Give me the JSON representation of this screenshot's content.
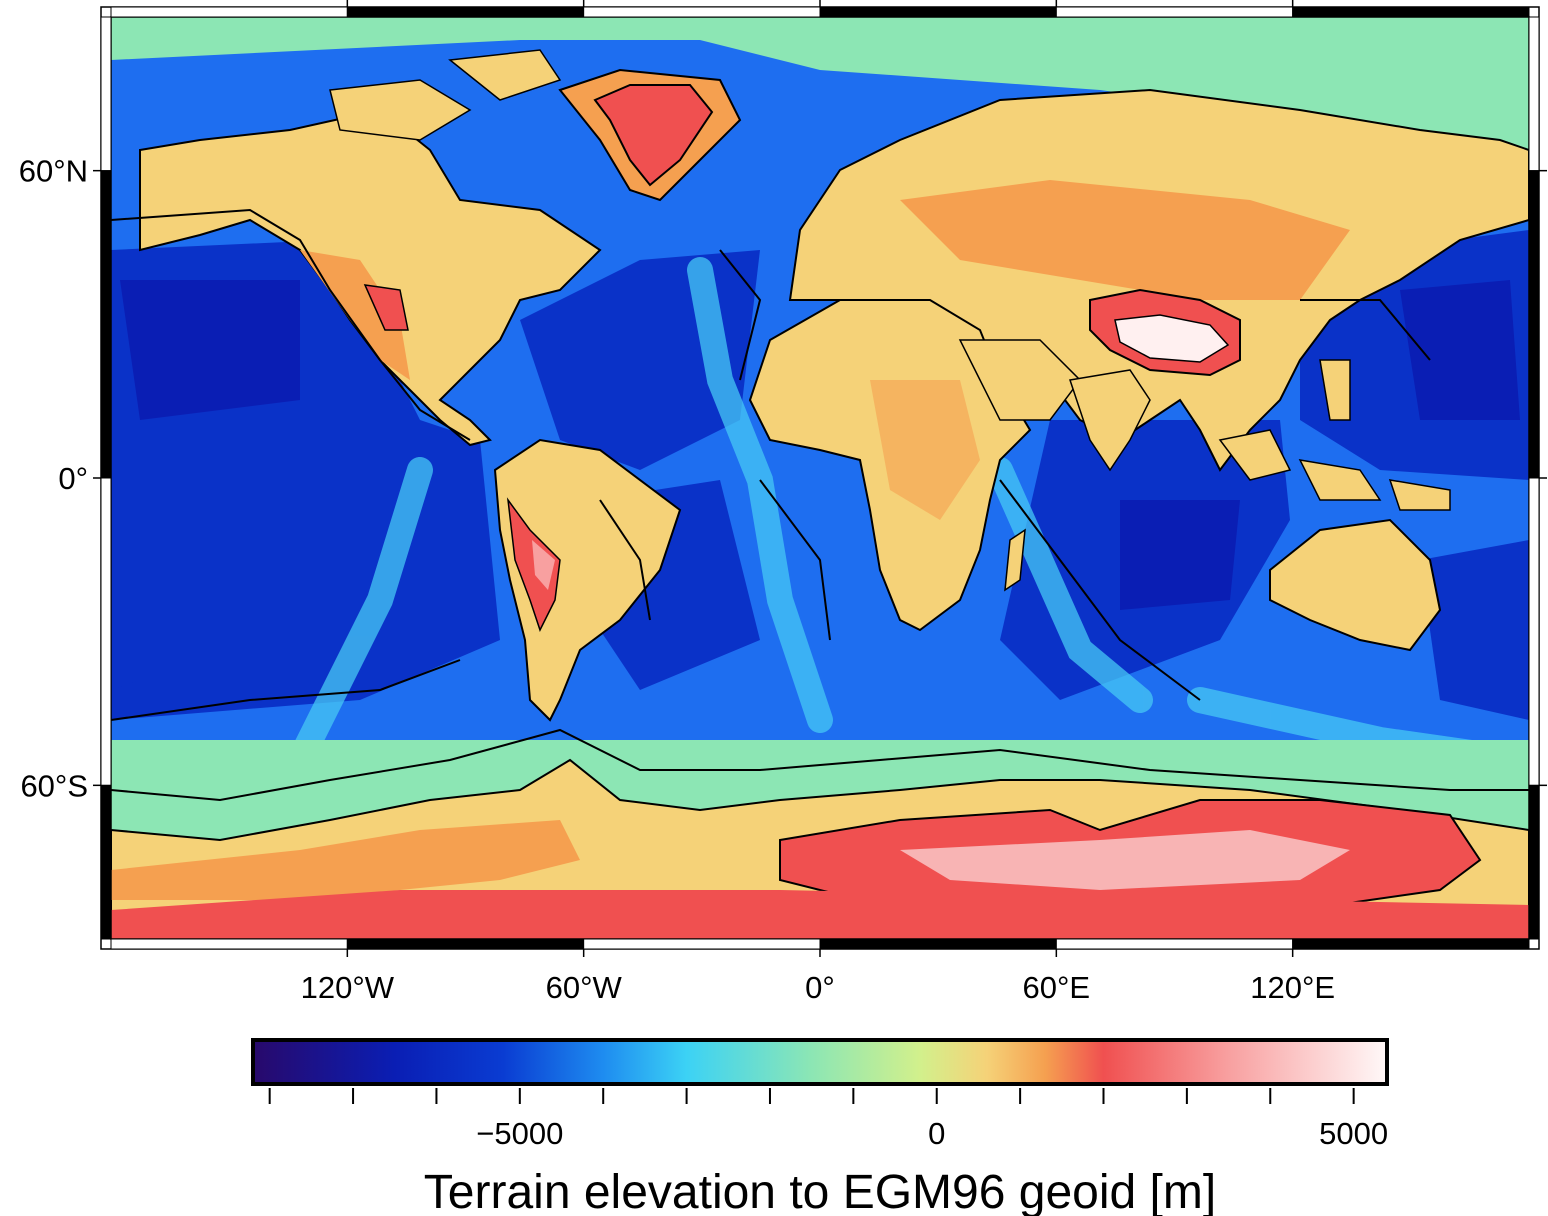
{
  "map": {
    "projection": "equirectangular (Plate Carrée), global",
    "longitude_range": [
      -180,
      180
    ],
    "latitude_range": [
      -90,
      90
    ],
    "background": "global relief grid with contours",
    "ocean_colors": [
      "#1c0a6e",
      "#0a28c8",
      "#1e6ef0",
      "#32b4f5",
      "#78e6d2"
    ],
    "land_colors": [
      "#c8f08c",
      "#f5dc78",
      "#f5b450",
      "#f05050",
      "#f8a0a0",
      "#fff8f8"
    ]
  },
  "axes": {
    "x_ticks": [
      {
        "value": -120,
        "label": "120°W"
      },
      {
        "value": -60,
        "label": "60°W"
      },
      {
        "value": 0,
        "label": "0°"
      },
      {
        "value": 60,
        "label": "60°E"
      },
      {
        "value": 120,
        "label": "120°E"
      }
    ],
    "y_ticks": [
      {
        "value": 60,
        "label": "60°N"
      },
      {
        "value": 0,
        "label": "0°"
      },
      {
        "value": -60,
        "label": "60°S"
      }
    ],
    "frame_style": "fancy (alternating black/white)"
  },
  "colorbar": {
    "orientation": "horizontal",
    "range": [
      -8200,
      5400
    ],
    "ticks": [
      {
        "value": -5000,
        "label": "−5000"
      },
      {
        "value": 0,
        "label": "0"
      },
      {
        "value": 5000,
        "label": "5000"
      }
    ],
    "minor_tick_step": 1000,
    "title": "Terrain elevation to EGM96 geoid [m]",
    "stops": [
      {
        "value": -8200,
        "color": "#28096b"
      },
      {
        "value": -6500,
        "color": "#0a1eb4"
      },
      {
        "value": -5200,
        "color": "#0a3cd2"
      },
      {
        "value": -4000,
        "color": "#1e8cf0"
      },
      {
        "value": -3000,
        "color": "#3cd2f5"
      },
      {
        "value": -1500,
        "color": "#8ce6b4"
      },
      {
        "value": -200,
        "color": "#d2f08c"
      },
      {
        "value": 600,
        "color": "#f5d278"
      },
      {
        "value": 1300,
        "color": "#f5a050"
      },
      {
        "value": 2000,
        "color": "#f05050"
      },
      {
        "value": 3500,
        "color": "#f8a0a0"
      },
      {
        "value": 5400,
        "color": "#fff8f8"
      }
    ]
  }
}
